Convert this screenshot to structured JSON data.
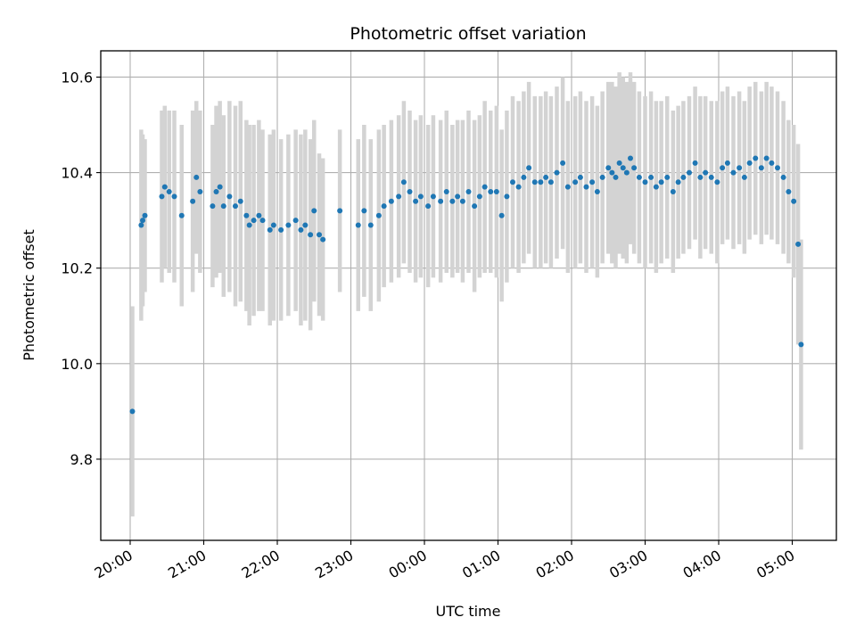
{
  "chart_data": {
    "type": "scatter",
    "title": "Photometric offset variation",
    "xlabel": "UTC time",
    "ylabel": "Photometric offset",
    "x_unit": "hours (UTC, 20:00 on day 1 continuing past midnight as 24+)",
    "x_ticks": [
      20,
      21,
      22,
      23,
      24,
      25,
      26,
      27,
      28,
      29
    ],
    "x_tick_labels": [
      "20:00",
      "21:00",
      "22:00",
      "23:00",
      "00:00",
      "01:00",
      "02:00",
      "03:00",
      "04:00",
      "05:00"
    ],
    "y_ticks": [
      9.8,
      10.0,
      10.2,
      10.4,
      10.6
    ],
    "y_tick_labels": [
      "9.8",
      "10.0",
      "10.2",
      "10.4",
      "10.6"
    ],
    "xlim": [
      19.6,
      29.6
    ],
    "ylim": [
      9.63,
      10.655
    ],
    "grid": true,
    "colors": {
      "marker": "#1f77b4",
      "errorbar": "#d3d3d3",
      "grid": "#b0b0b0"
    },
    "series": [
      {
        "x": [
          20.03,
          20.15,
          20.17,
          20.2,
          20.43,
          20.47,
          20.53,
          20.6,
          20.7,
          20.85,
          20.9,
          20.95,
          21.12,
          21.17,
          21.22,
          21.27,
          21.35,
          21.43,
          21.5,
          21.58,
          21.62,
          21.68,
          21.75,
          21.8,
          21.9,
          21.95,
          22.05,
          22.15,
          22.25,
          22.32,
          22.38,
          22.45,
          22.5,
          22.57,
          22.62,
          22.85,
          23.1,
          23.18,
          23.27,
          23.38,
          23.45,
          23.55,
          23.65,
          23.72,
          23.8,
          23.88,
          23.95,
          24.05,
          24.12,
          24.22,
          24.3,
          24.38,
          24.45,
          24.52,
          24.6,
          24.68,
          24.75,
          24.82,
          24.9,
          24.98,
          25.05,
          25.12,
          25.2,
          25.28,
          25.35,
          25.42,
          25.5,
          25.58,
          25.65,
          25.72,
          25.8,
          25.88,
          25.95,
          26.05,
          26.12,
          26.2,
          26.28,
          26.35,
          26.42,
          26.5,
          26.55,
          26.6,
          26.65,
          26.7,
          26.75,
          26.8,
          26.85,
          26.92,
          27.0,
          27.08,
          27.15,
          27.22,
          27.3,
          27.38,
          27.45,
          27.52,
          27.6,
          27.68,
          27.75,
          27.82,
          27.9,
          27.98,
          28.05,
          28.12,
          28.2,
          28.28,
          28.35,
          28.42,
          28.5,
          28.58,
          28.65,
          28.72,
          28.8,
          28.88,
          28.95,
          29.02,
          29.08,
          29.12
        ],
        "y": [
          9.9,
          10.29,
          10.3,
          10.31,
          10.35,
          10.37,
          10.36,
          10.35,
          10.31,
          10.34,
          10.39,
          10.36,
          10.33,
          10.36,
          10.37,
          10.33,
          10.35,
          10.33,
          10.34,
          10.31,
          10.29,
          10.3,
          10.31,
          10.3,
          10.28,
          10.29,
          10.28,
          10.29,
          10.3,
          10.28,
          10.29,
          10.27,
          10.32,
          10.27,
          10.26,
          10.32,
          10.29,
          10.32,
          10.29,
          10.31,
          10.33,
          10.34,
          10.35,
          10.38,
          10.36,
          10.34,
          10.35,
          10.33,
          10.35,
          10.34,
          10.36,
          10.34,
          10.35,
          10.34,
          10.36,
          10.33,
          10.35,
          10.37,
          10.36,
          10.36,
          10.31,
          10.35,
          10.38,
          10.37,
          10.39,
          10.41,
          10.38,
          10.38,
          10.39,
          10.38,
          10.4,
          10.42,
          10.37,
          10.38,
          10.39,
          10.37,
          10.38,
          10.36,
          10.39,
          10.41,
          10.4,
          10.39,
          10.42,
          10.41,
          10.4,
          10.43,
          10.41,
          10.39,
          10.38,
          10.39,
          10.37,
          10.38,
          10.39,
          10.36,
          10.38,
          10.39,
          10.4,
          10.42,
          10.39,
          10.4,
          10.39,
          10.38,
          10.41,
          10.42,
          10.4,
          10.41,
          10.39,
          10.42,
          10.43,
          10.41,
          10.43,
          10.42,
          10.41,
          10.39,
          10.36,
          10.34,
          10.25,
          10.04
        ],
        "err": [
          0.22,
          0.2,
          0.18,
          0.16,
          0.18,
          0.17,
          0.17,
          0.18,
          0.19,
          0.19,
          0.16,
          0.17,
          0.17,
          0.18,
          0.18,
          0.19,
          0.2,
          0.21,
          0.21,
          0.2,
          0.21,
          0.2,
          0.2,
          0.19,
          0.2,
          0.2,
          0.19,
          0.19,
          0.19,
          0.2,
          0.2,
          0.2,
          0.19,
          0.17,
          0.17,
          0.17,
          0.18,
          0.18,
          0.18,
          0.18,
          0.17,
          0.17,
          0.17,
          0.17,
          0.17,
          0.17,
          0.17,
          0.17,
          0.17,
          0.17,
          0.17,
          0.16,
          0.16,
          0.17,
          0.17,
          0.18,
          0.17,
          0.18,
          0.17,
          0.18,
          0.18,
          0.18,
          0.18,
          0.18,
          0.18,
          0.18,
          0.18,
          0.18,
          0.18,
          0.18,
          0.18,
          0.18,
          0.18,
          0.18,
          0.18,
          0.18,
          0.18,
          0.18,
          0.18,
          0.18,
          0.19,
          0.19,
          0.19,
          0.19,
          0.19,
          0.18,
          0.18,
          0.18,
          0.18,
          0.18,
          0.18,
          0.17,
          0.17,
          0.17,
          0.16,
          0.16,
          0.16,
          0.16,
          0.17,
          0.16,
          0.16,
          0.17,
          0.16,
          0.16,
          0.16,
          0.16,
          0.16,
          0.16,
          0.16,
          0.16,
          0.16,
          0.16,
          0.16,
          0.16,
          0.15,
          0.16,
          0.21,
          0.22
        ]
      }
    ]
  }
}
